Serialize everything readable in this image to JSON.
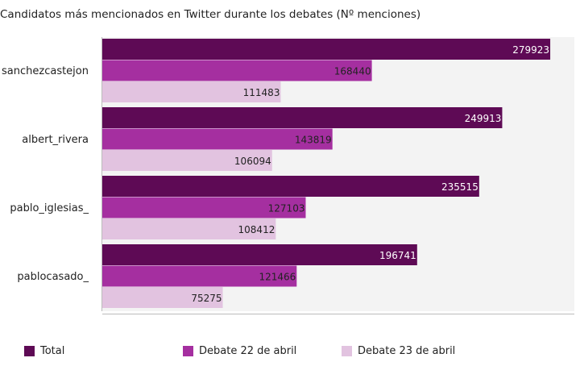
{
  "chart_data": {
    "type": "bar",
    "orientation": "horizontal",
    "title": "Candidatos más mencionados en Twitter durante los debates (Nº menciones)",
    "categories": [
      "sanchezcastejon",
      "albert_rivera",
      "pablo_iglesias_",
      "pablocasado_"
    ],
    "series": [
      {
        "name": "Total",
        "color": "#5e0a55",
        "values": [
          279923,
          249913,
          235515,
          196741
        ]
      },
      {
        "name": "Debate 22 de abril",
        "color": "#a52fa0",
        "values": [
          168440,
          143819,
          127103,
          121466
        ]
      },
      {
        "name": "Debate 23 de abril",
        "color": "#e2c3e0",
        "values": [
          111483,
          106094,
          108412,
          75275
        ]
      }
    ],
    "xlim": [
      0,
      295000
    ],
    "grid": false,
    "legend_position": "bottom"
  }
}
